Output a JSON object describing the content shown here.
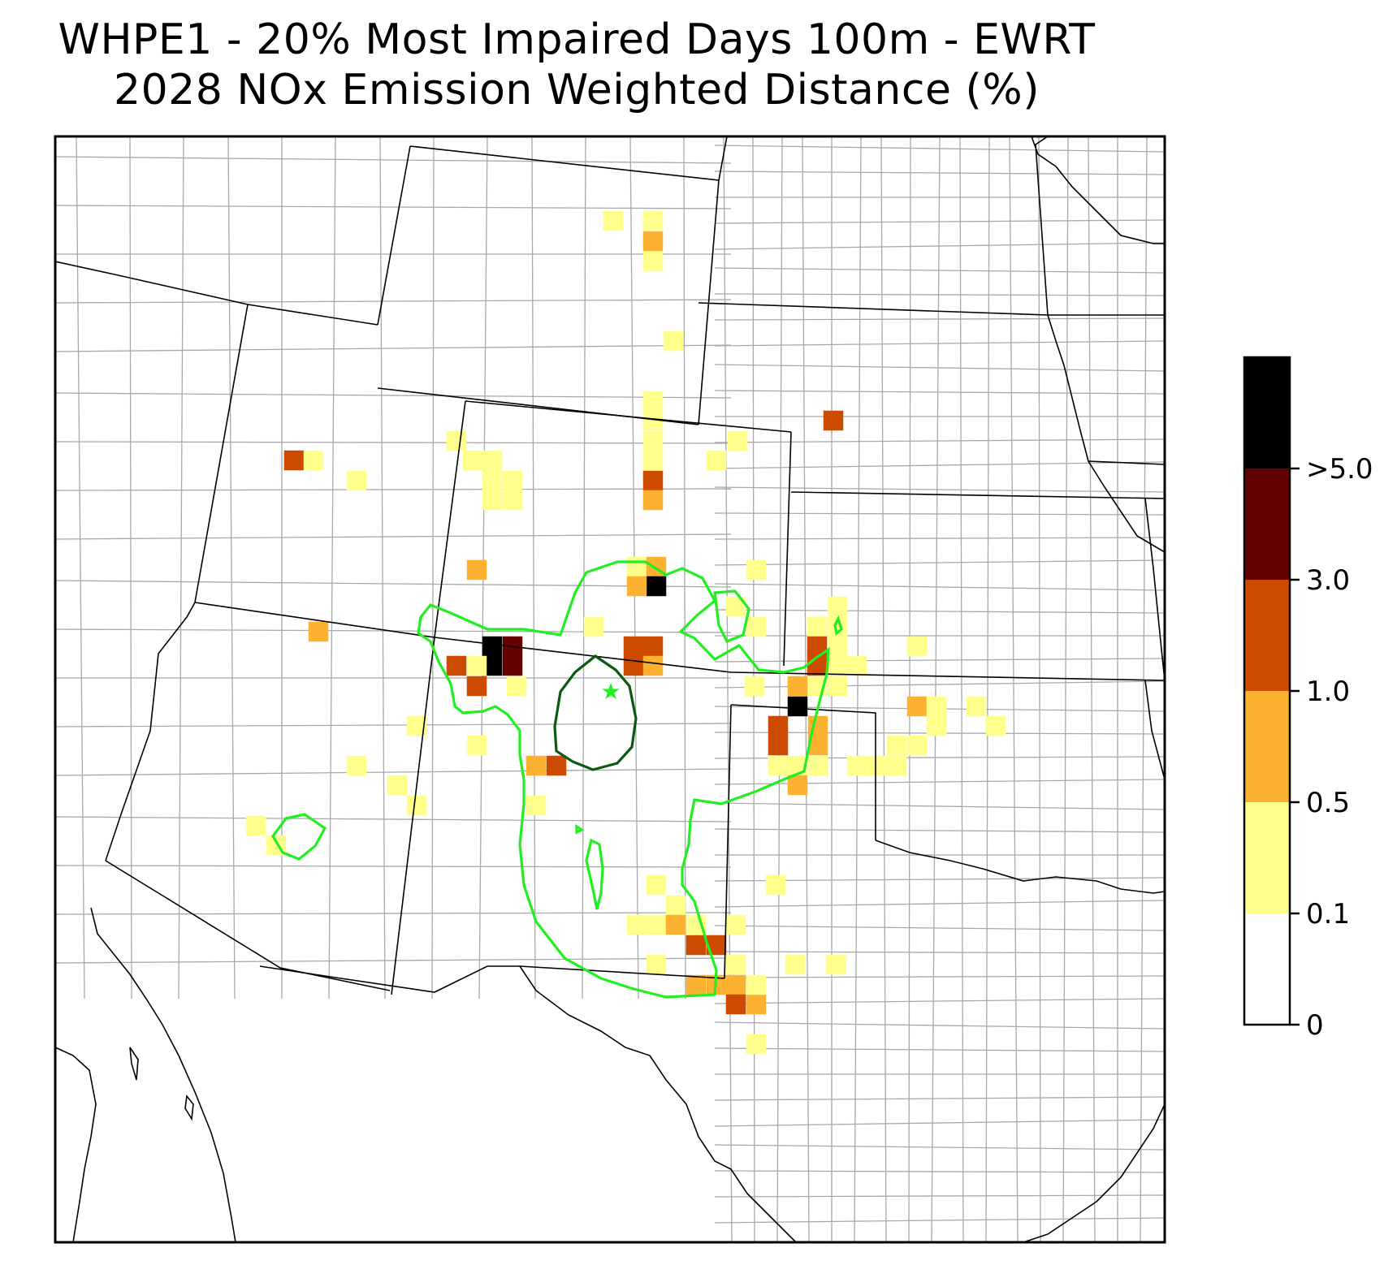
{
  "title": {
    "line1": "WHPE1 - 20% Most Impaired Days 100m - EWRT",
    "line2": "2028 NOx Emission Weighted Distance (%)"
  },
  "colorbar": {
    "tick_labels": [
      "0",
      "0.1",
      "0.5",
      "1.0",
      "3.0",
      ">5.0"
    ],
    "bins": [
      {
        "range": "0-0.1",
        "color": "#ffffff"
      },
      {
        "range": "0.1-0.5",
        "color": "#ffff8c"
      },
      {
        "range": "0.5-1.0",
        "color": "#fdb130"
      },
      {
        "range": "1.0-3.0",
        "color": "#cc4b00"
      },
      {
        "range": "3.0-5.0",
        "color": "#650000"
      },
      {
        "range": ">5.0",
        "color": "#000000"
      }
    ]
  },
  "map": {
    "site_marker": "star-icon",
    "site_marker_color": "#22ee22",
    "contour_colors": {
      "outer": "#22ee22",
      "inner": "#0c5a12"
    },
    "state_border_color": "#000000",
    "county_border_color": "#a8a8a8"
  }
}
